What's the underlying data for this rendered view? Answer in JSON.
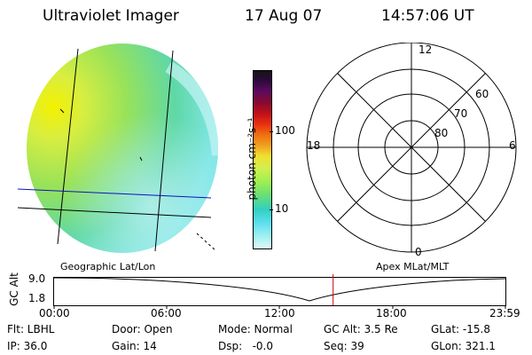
{
  "header": {
    "instrument": "Ultraviolet Imager",
    "date": "17 Aug 07",
    "time": "14:57:06 UT"
  },
  "colorbar": {
    "unit_label": "photon cm⁻²s⁻¹",
    "ticks": [
      "100",
      "10"
    ],
    "stops": [
      "#141414",
      "#2a0a3a",
      "#5a0a60",
      "#8a0a30",
      "#c0101a",
      "#e83010",
      "#f07010",
      "#f0a020",
      "#f0e030",
      "#d0f050",
      "#a0f050",
      "#70e070",
      "#30d0c0",
      "#60e0f0",
      "#a0f0f0",
      "#e0f8f8"
    ]
  },
  "image_panel": {
    "caption": "Geographic Lat/Lon"
  },
  "polar_panel": {
    "caption": "Apex MLat/MLT",
    "mlt_labels": {
      "top": "12",
      "bottom": "0",
      "left": "18",
      "right": "6"
    },
    "mlat_labels": [
      "60",
      "70",
      "80"
    ]
  },
  "altitude_strip": {
    "ylabel": "GC Alt",
    "ytick_top": "9.0",
    "ytick_bottom": "1.8",
    "time_ticks": [
      "00:00",
      "06:00",
      "12:00",
      "18:00",
      "23:59"
    ],
    "marker_time": "14:57"
  },
  "status": {
    "flt": "Flt: LBHL",
    "ip": "IP: 36.0",
    "door": "Door: Open",
    "gain": "Gain: 14",
    "mode": "Mode: Normal",
    "dsp": "Dsp:   -0.0",
    "gcalt": "GC Alt: 3.5 Re",
    "seq": "Seq: 39",
    "glat": "GLat: -15.8",
    "glon": "GLon: 321.1"
  }
}
